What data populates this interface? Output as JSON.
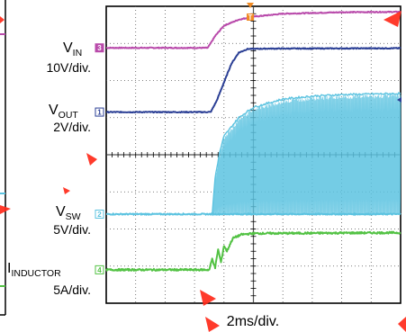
{
  "chart_data": {
    "type": "line",
    "title": "",
    "xlabel": "2ms/div.",
    "x_divisions": 10,
    "y_divisions": 8,
    "time_per_div_ms": 2,
    "trigger_position_div": 4,
    "grid": true,
    "markers": {
      "trigger": "T",
      "channel_numbers": [
        "3",
        "1",
        "2",
        "4"
      ]
    },
    "series": [
      {
        "key": "vin",
        "label_main": "V",
        "label_sub": "IN",
        "scale": "10V/div.",
        "channel": "3",
        "color": "#b94bab",
        "ref_level_div": 6.88,
        "x_div": [
          0,
          3.45,
          3.7,
          4.0,
          4.5,
          5.0,
          6.0,
          8.0,
          10.0
        ],
        "y_div": [
          6.88,
          6.88,
          7.2,
          7.48,
          7.64,
          7.72,
          7.8,
          7.84,
          7.85
        ]
      },
      {
        "key": "vout",
        "label_main": "V",
        "label_sub": "OUT",
        "scale": "2V/div.",
        "channel": "1",
        "color": "#2b3f95",
        "ref_level_div": 5.15,
        "x_div": [
          0,
          3.55,
          3.75,
          4.0,
          4.25,
          4.5,
          4.8,
          5.5,
          10.0
        ],
        "y_div": [
          5.15,
          5.15,
          5.45,
          5.95,
          6.45,
          6.75,
          6.85,
          6.86,
          6.87
        ]
      },
      {
        "key": "vsw",
        "label_main": "V",
        "label_sub": "SW",
        "scale": "5V/div.",
        "channel": "2",
        "color": "#5cc3e0",
        "ref_level_div": 2.4,
        "baseline_div": 2.4,
        "env_x_div": [
          3.6,
          3.7,
          3.85,
          4.0,
          4.5,
          5.0,
          6.0,
          7.0,
          8.0,
          10.0
        ],
        "env_top_div": [
          2.4,
          3.4,
          4.05,
          4.5,
          5.0,
          5.28,
          5.5,
          5.58,
          5.62,
          5.65
        ],
        "env_bottom_div": [
          2.4,
          2.4,
          2.4,
          2.4,
          2.4,
          2.4,
          2.4,
          2.4,
          2.4,
          2.4
        ]
      },
      {
        "key": "iind",
        "label_main": "I",
        "label_sub": "INDUCTOR",
        "scale": "5A/div.",
        "channel": "4",
        "color": "#53c244",
        "ref_level_div": 0.9,
        "x_div": [
          0,
          3.5,
          3.6,
          3.7,
          3.8,
          3.9,
          4.0,
          4.1,
          4.3,
          4.6,
          5.0,
          10.0
        ],
        "y_div": [
          0.9,
          0.9,
          1.2,
          0.95,
          1.45,
          1.1,
          1.55,
          1.4,
          1.75,
          1.85,
          1.88,
          1.9
        ]
      }
    ]
  }
}
